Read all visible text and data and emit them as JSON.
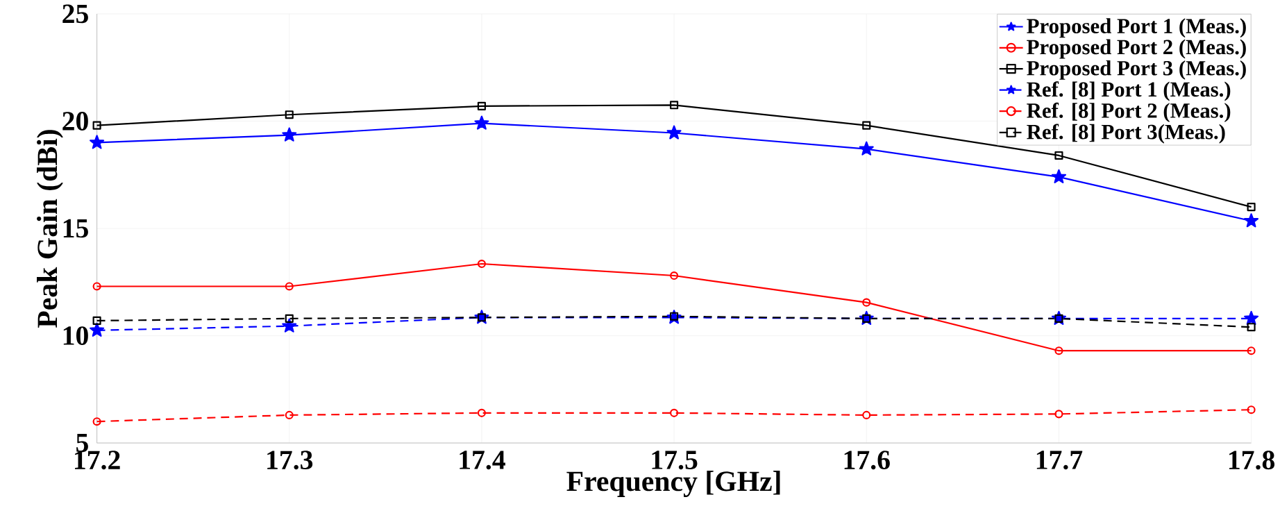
{
  "chart_data": {
    "type": "line",
    "xlabel": "Frequency [GHz]",
    "ylabel": "Peak Gain (dBi)",
    "x": [
      17.2,
      17.3,
      17.4,
      17.5,
      17.6,
      17.7,
      17.8
    ],
    "xlim": [
      17.2,
      17.8
    ],
    "xticks": [
      17.2,
      17.3,
      17.4,
      17.5,
      17.6,
      17.7,
      17.8
    ],
    "ylim": [
      5,
      25
    ],
    "yticks": [
      5,
      10,
      15,
      20,
      25
    ],
    "grid": true,
    "legend": "top right",
    "series": [
      {
        "name": "Proposed Port 1 (Meas.)",
        "color": "#0000ff",
        "marker": "star",
        "line_style": "solid",
        "values": [
          19.0,
          19.35,
          19.9,
          19.45,
          18.7,
          17.4,
          15.35
        ]
      },
      {
        "name": "Proposed Port 2 (Meas.)",
        "color": "#ff0000",
        "marker": "circle",
        "line_style": "solid",
        "values": [
          12.3,
          12.3,
          13.35,
          12.8,
          11.55,
          9.3,
          9.3
        ]
      },
      {
        "name": "Proposed Port 3 (Meas.)",
        "color": "#000000",
        "marker": "square",
        "line_style": "solid",
        "values": [
          19.8,
          20.3,
          20.7,
          20.75,
          19.8,
          18.4,
          16.0
        ]
      },
      {
        "name": "Ref. [8] Port 1 (Meas.)",
        "color": "#0000ff",
        "marker": "star",
        "line_style": "dashed",
        "values": [
          10.25,
          10.45,
          10.85,
          10.85,
          10.8,
          10.8,
          10.8
        ]
      },
      {
        "name": "Ref. [8] Port 2 (Meas.)",
        "color": "#ff0000",
        "marker": "circle",
        "line_style": "dashed",
        "values": [
          6.0,
          6.3,
          6.4,
          6.4,
          6.3,
          6.35,
          6.55
        ]
      },
      {
        "name": "Ref. [8] Port 3(Meas.)",
        "color": "#000000",
        "marker": "square",
        "line_style": "dashed",
        "values": [
          10.7,
          10.8,
          10.85,
          10.9,
          10.8,
          10.8,
          10.4
        ]
      }
    ]
  }
}
